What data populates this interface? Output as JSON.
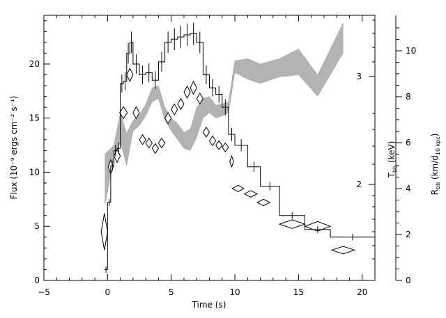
{
  "chart_data": {
    "type": "line",
    "title": "",
    "xlabel": "Time (s)",
    "ylabel": "Flux (10⁻⁹ ergs cm⁻² s⁻¹)",
    "y2label": "T",
    "y2label_sub": "bb",
    "y2label_unit": " (keV)",
    "y3label_main": "R",
    "y3label_sub": "bb",
    "y3label_mid": " (km/d",
    "y3label_sub2": "10 kpc",
    "y3label_end": ")",
    "xlim": [
      -5,
      21
    ],
    "ylim": [
      0,
      24.5
    ],
    "xticks": [
      "−5",
      "0",
      "5",
      "10",
      "15",
      "20"
    ],
    "yticks": [
      "0",
      "5",
      "10",
      "15",
      "20"
    ],
    "y2ticks": [
      "2",
      "3"
    ],
    "y3ticks": [
      "0",
      "2",
      "4",
      "6",
      "8",
      "10"
    ],
    "series": [
      {
        "kind": "step",
        "style": "black histogram with error bars",
        "bins": [
          [
            -0.25,
            0.0,
            1.0
          ],
          [
            0.0,
            0.25,
            7.2
          ],
          [
            0.25,
            0.5,
            10.6
          ],
          [
            0.5,
            0.75,
            12.0
          ],
          [
            0.75,
            1.0,
            12.2
          ],
          [
            1.0,
            1.25,
            18.2
          ],
          [
            1.25,
            1.5,
            18.4
          ],
          [
            1.5,
            1.75,
            21.0
          ],
          [
            1.75,
            2.0,
            22.0
          ],
          [
            2.0,
            2.5,
            20.0
          ],
          [
            2.5,
            3.0,
            19.0
          ],
          [
            3.0,
            3.5,
            19.2
          ],
          [
            3.5,
            4.0,
            18.5
          ],
          [
            4.0,
            4.5,
            20.2
          ],
          [
            4.5,
            5.0,
            22.0
          ],
          [
            5.0,
            5.5,
            22.3
          ],
          [
            5.5,
            6.0,
            22.5
          ],
          [
            6.0,
            6.5,
            22.7
          ],
          [
            6.5,
            7.0,
            22.8
          ],
          [
            7.0,
            7.5,
            22.0
          ],
          [
            7.5,
            8.0,
            19.0
          ],
          [
            8.0,
            8.5,
            17.8
          ],
          [
            8.5,
            9.0,
            17.2
          ],
          [
            9.0,
            9.5,
            16.0
          ],
          [
            9.5,
            10.0,
            13.5
          ],
          [
            10.0,
            11.0,
            12.5
          ],
          [
            11.0,
            12.0,
            10.5
          ],
          [
            12.0,
            13.5,
            8.7
          ],
          [
            13.5,
            15.5,
            6.0
          ],
          [
            15.5,
            17.5,
            4.7
          ],
          [
            17.5,
            21.0,
            4.0
          ]
        ]
      },
      {
        "kind": "band",
        "style": "gray shaded band",
        "x": [
          -0.2,
          0.5,
          1.0,
          1.5,
          2.0,
          2.5,
          3.0,
          3.5,
          4.0,
          4.5,
          5.0,
          5.5,
          6.0,
          6.5,
          7.0,
          7.5,
          8.0,
          8.5,
          9.0,
          9.5,
          10.0,
          11.0,
          12.0,
          13.5,
          15.0,
          16.5,
          18.5
        ],
        "upper": [
          11.7,
          12.5,
          15.5,
          13.6,
          14.8,
          15.3,
          16.3,
          17.8,
          18.0,
          16.0,
          15.0,
          14.5,
          13.7,
          14.0,
          16.0,
          16.8,
          17.0,
          16.2,
          16.3,
          16.5,
          20.3,
          20.5,
          20.0,
          20.5,
          21.4,
          19.0,
          23.8
        ],
        "lower": [
          7.0,
          11.2,
          12.8,
          10.6,
          13.8,
          14.3,
          15.2,
          16.5,
          16.8,
          14.8,
          13.8,
          13.0,
          12.2,
          12.0,
          13.2,
          15.0,
          15.5,
          15.0,
          15.2,
          15.5,
          19.2,
          18.6,
          18.2,
          18.8,
          19.0,
          17.0,
          21.0
        ]
      },
      {
        "kind": "diamonds",
        "style": "open diamonds",
        "points": [
          {
            "x": -0.25,
            "y": 4.5,
            "dx": 0.25,
            "dy": 1.7
          },
          {
            "x": 0.25,
            "y": 10.5,
            "dx": 0.2,
            "dy": 0.65
          },
          {
            "x": 0.75,
            "y": 11.5,
            "dx": 0.25,
            "dy": 0.6
          },
          {
            "x": 1.25,
            "y": 15.5,
            "dx": 0.3,
            "dy": 0.55
          },
          {
            "x": 1.75,
            "y": 19.0,
            "dx": 0.25,
            "dy": 0.6
          },
          {
            "x": 2.25,
            "y": 15.5,
            "dx": 0.25,
            "dy": 0.55
          },
          {
            "x": 2.75,
            "y": 13.0,
            "dx": 0.25,
            "dy": 0.45
          },
          {
            "x": 3.25,
            "y": 12.7,
            "dx": 0.25,
            "dy": 0.45
          },
          {
            "x": 3.75,
            "y": 12.2,
            "dx": 0.25,
            "dy": 0.45
          },
          {
            "x": 4.25,
            "y": 12.7,
            "dx": 0.25,
            "dy": 0.45
          },
          {
            "x": 4.75,
            "y": 15.0,
            "dx": 0.25,
            "dy": 0.5
          },
          {
            "x": 5.25,
            "y": 15.8,
            "dx": 0.25,
            "dy": 0.5
          },
          {
            "x": 5.75,
            "y": 16.3,
            "dx": 0.25,
            "dy": 0.5
          },
          {
            "x": 6.25,
            "y": 17.4,
            "dx": 0.25,
            "dy": 0.55
          },
          {
            "x": 6.75,
            "y": 17.8,
            "dx": 0.25,
            "dy": 0.6
          },
          {
            "x": 7.25,
            "y": 16.8,
            "dx": 0.25,
            "dy": 0.5
          },
          {
            "x": 7.75,
            "y": 13.7,
            "dx": 0.25,
            "dy": 0.45
          },
          {
            "x": 8.25,
            "y": 12.9,
            "dx": 0.25,
            "dy": 0.45
          },
          {
            "x": 8.75,
            "y": 12.5,
            "dx": 0.25,
            "dy": 0.4
          },
          {
            "x": 9.25,
            "y": 12.3,
            "dx": 0.25,
            "dy": 0.4
          },
          {
            "x": 9.75,
            "y": 11.0,
            "dx": 0.15,
            "dy": 0.5
          },
          {
            "x": 10.25,
            "y": 8.5,
            "dx": 0.45,
            "dy": 0.3
          },
          {
            "x": 11.25,
            "y": 8.0,
            "dx": 0.5,
            "dy": 0.3
          },
          {
            "x": 12.25,
            "y": 7.2,
            "dx": 0.5,
            "dy": 0.3
          },
          {
            "x": 14.5,
            "y": 5.2,
            "dx": 1.0,
            "dy": 0.4
          },
          {
            "x": 16.5,
            "y": 5.0,
            "dx": 1.0,
            "dy": 0.45
          },
          {
            "x": 18.5,
            "y": 2.8,
            "dx": 0.9,
            "dy": 0.35
          }
        ]
      }
    ]
  }
}
